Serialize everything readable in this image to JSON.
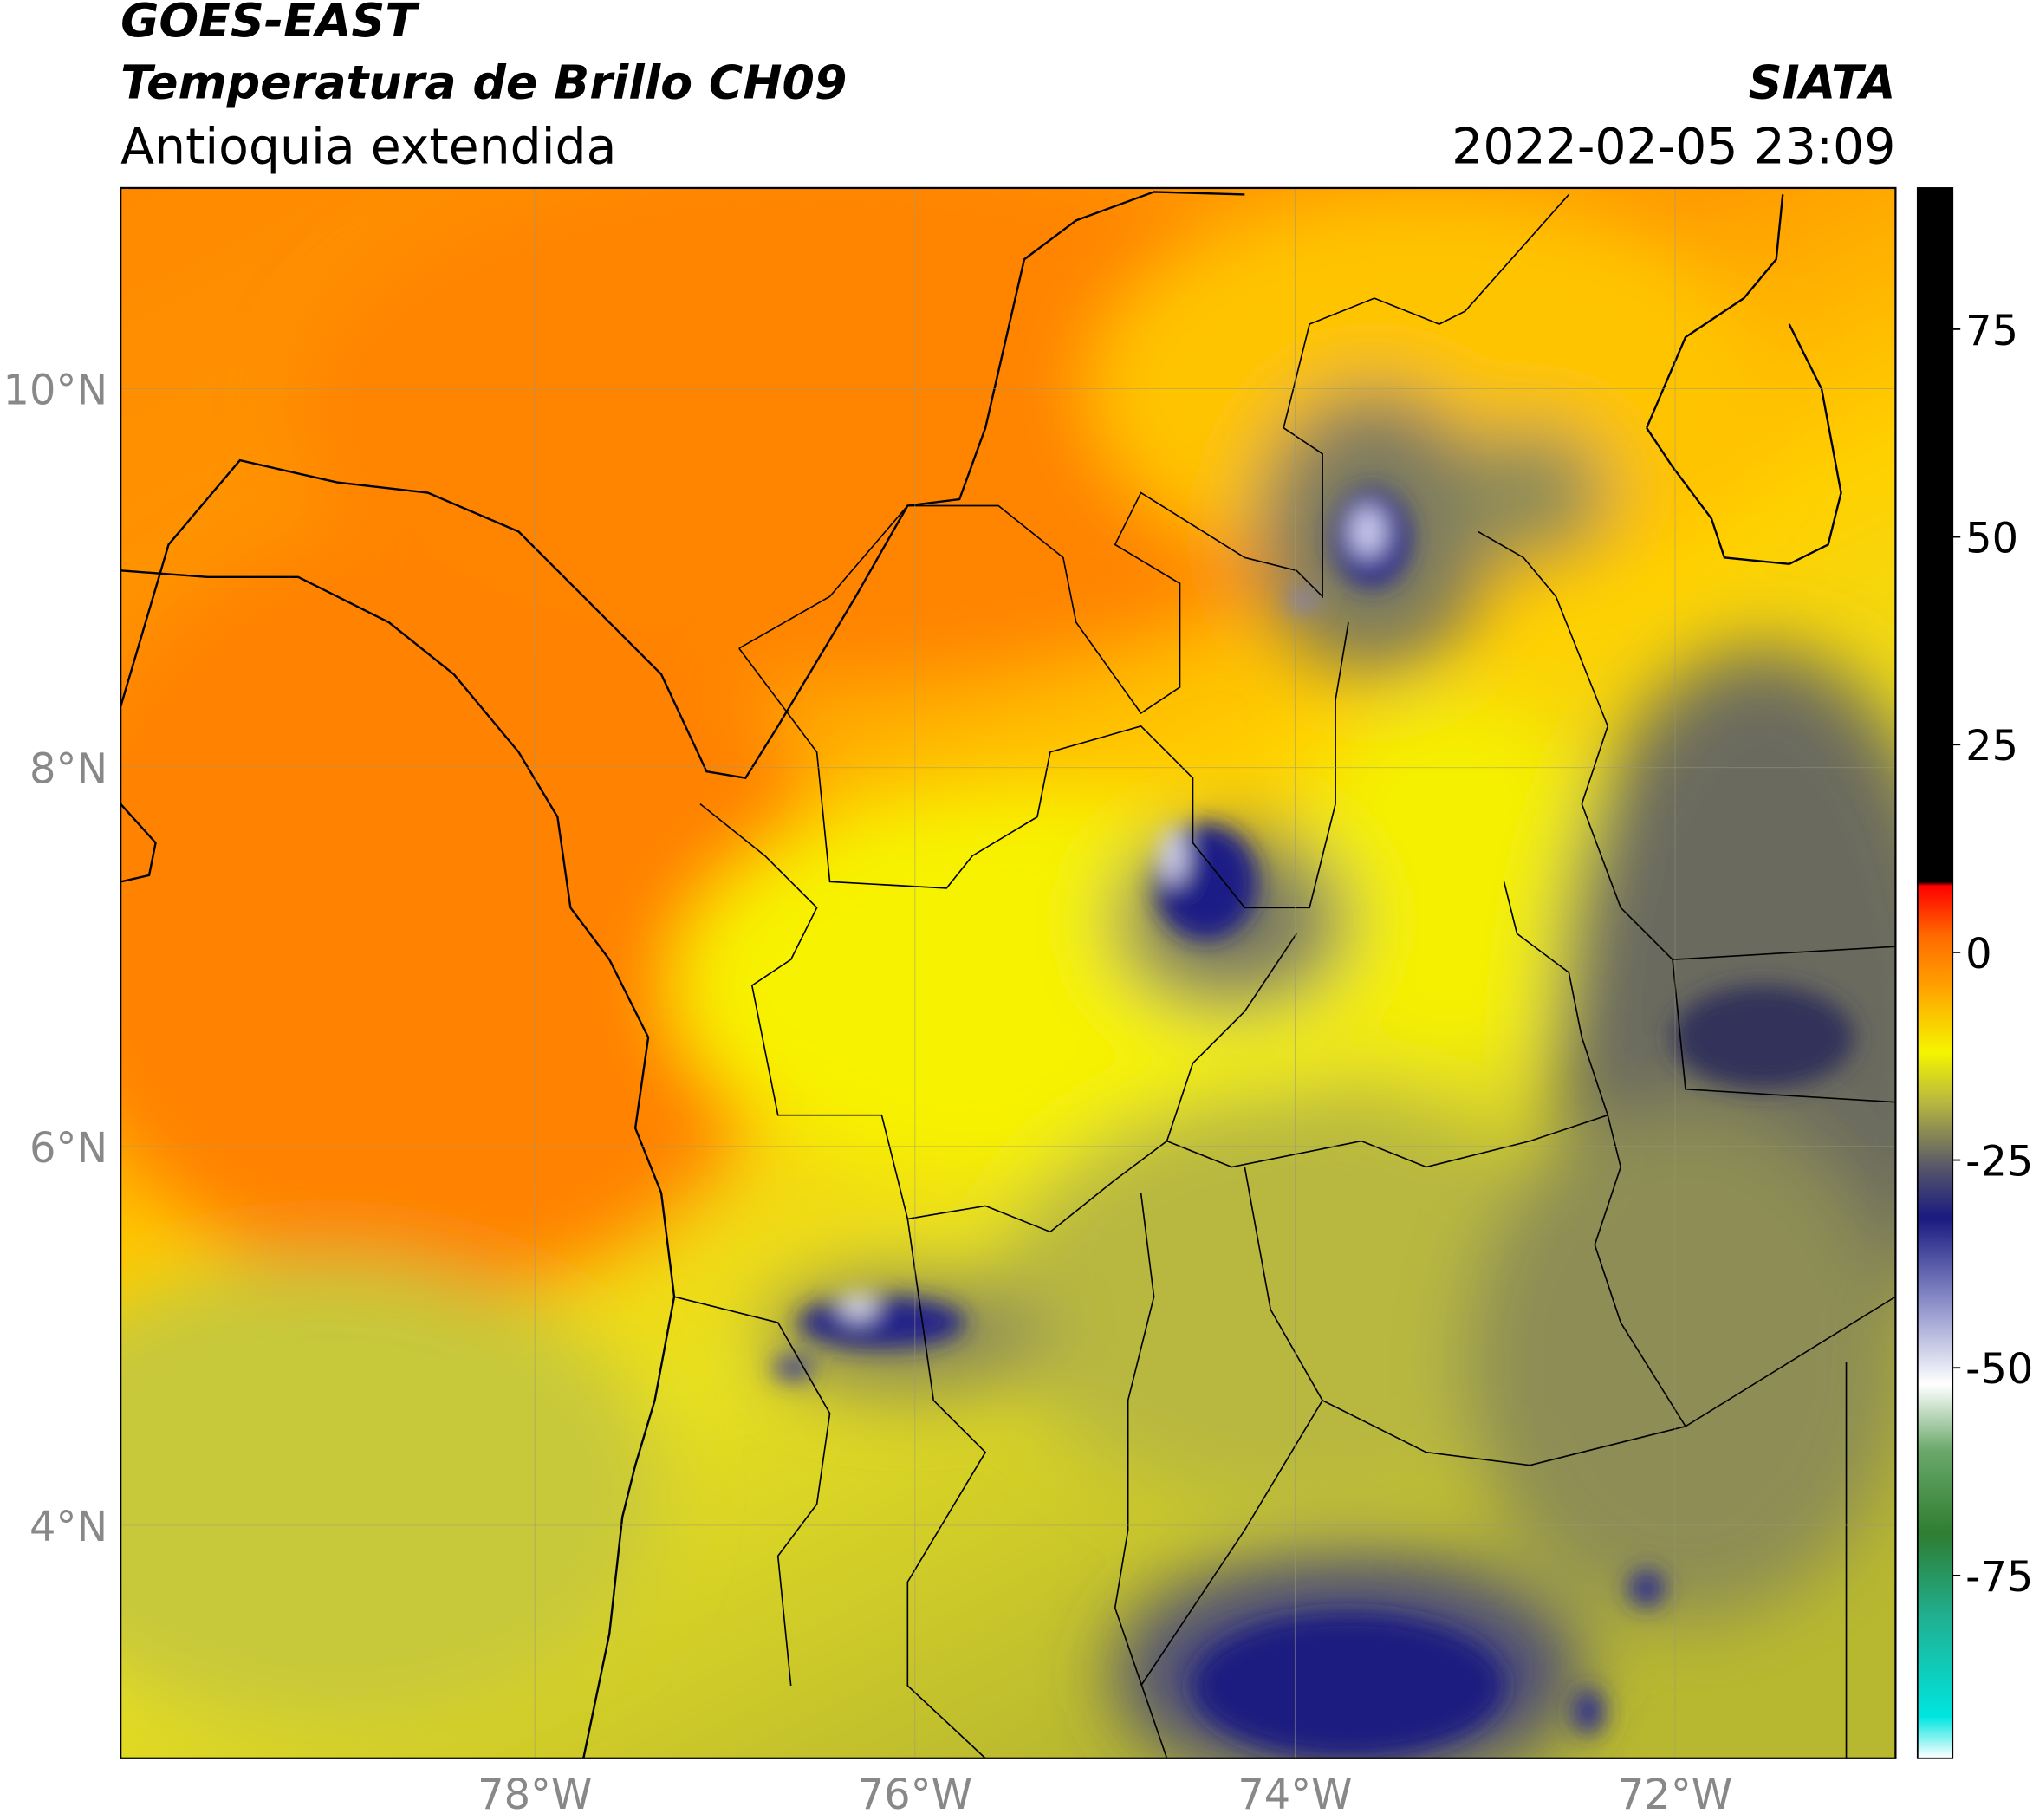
{
  "header": {
    "title": "GOES-EAST",
    "subtitle": "Temperatura de Brillo CH09",
    "region": "Antioquia extendida",
    "source": "SIATA",
    "datetime": "2022-02-05 23:09"
  },
  "map": {
    "xlim": [
      -80.18,
      -70.84
    ],
    "ylim": [
      2.77,
      11.06
    ],
    "xticks": [
      {
        "value": -78,
        "label": "78°W"
      },
      {
        "value": -76,
        "label": "76°W"
      },
      {
        "value": -74,
        "label": "74°W"
      },
      {
        "value": -72,
        "label": "72°W"
      }
    ],
    "yticks": [
      {
        "value": 10,
        "label": "10°N"
      },
      {
        "value": 8,
        "label": "8°N"
      },
      {
        "value": 6,
        "label": "6°N"
      },
      {
        "value": 4,
        "label": "4°N"
      }
    ],
    "grid": true
  },
  "colorbar": {
    "lim": [
      -97,
      92
    ],
    "ticks": [
      75,
      50,
      25,
      0,
      -25,
      -50,
      -75
    ],
    "colormap": [
      {
        "value": -97,
        "color": "#ffffff"
      },
      {
        "value": -92,
        "color": "#00e5e0"
      },
      {
        "value": -80,
        "color": "#20b090"
      },
      {
        "value": -70,
        "color": "#2e7d32"
      },
      {
        "value": -60,
        "color": "#6aa86a"
      },
      {
        "value": -52,
        "color": "#ffffff"
      },
      {
        "value": -42,
        "color": "#8a8ec8"
      },
      {
        "value": -32,
        "color": "#1a1a80"
      },
      {
        "value": -26,
        "color": "#55556a"
      },
      {
        "value": -18,
        "color": "#b8b840"
      },
      {
        "value": -12,
        "color": "#f5f500"
      },
      {
        "value": -4,
        "color": "#ffa000"
      },
      {
        "value": 2,
        "color": "#ff6a00"
      },
      {
        "value": 8,
        "color": "#ff0000"
      },
      {
        "value": 8.5,
        "color": "#000000"
      },
      {
        "value": 92,
        "color": "#000000"
      }
    ]
  }
}
